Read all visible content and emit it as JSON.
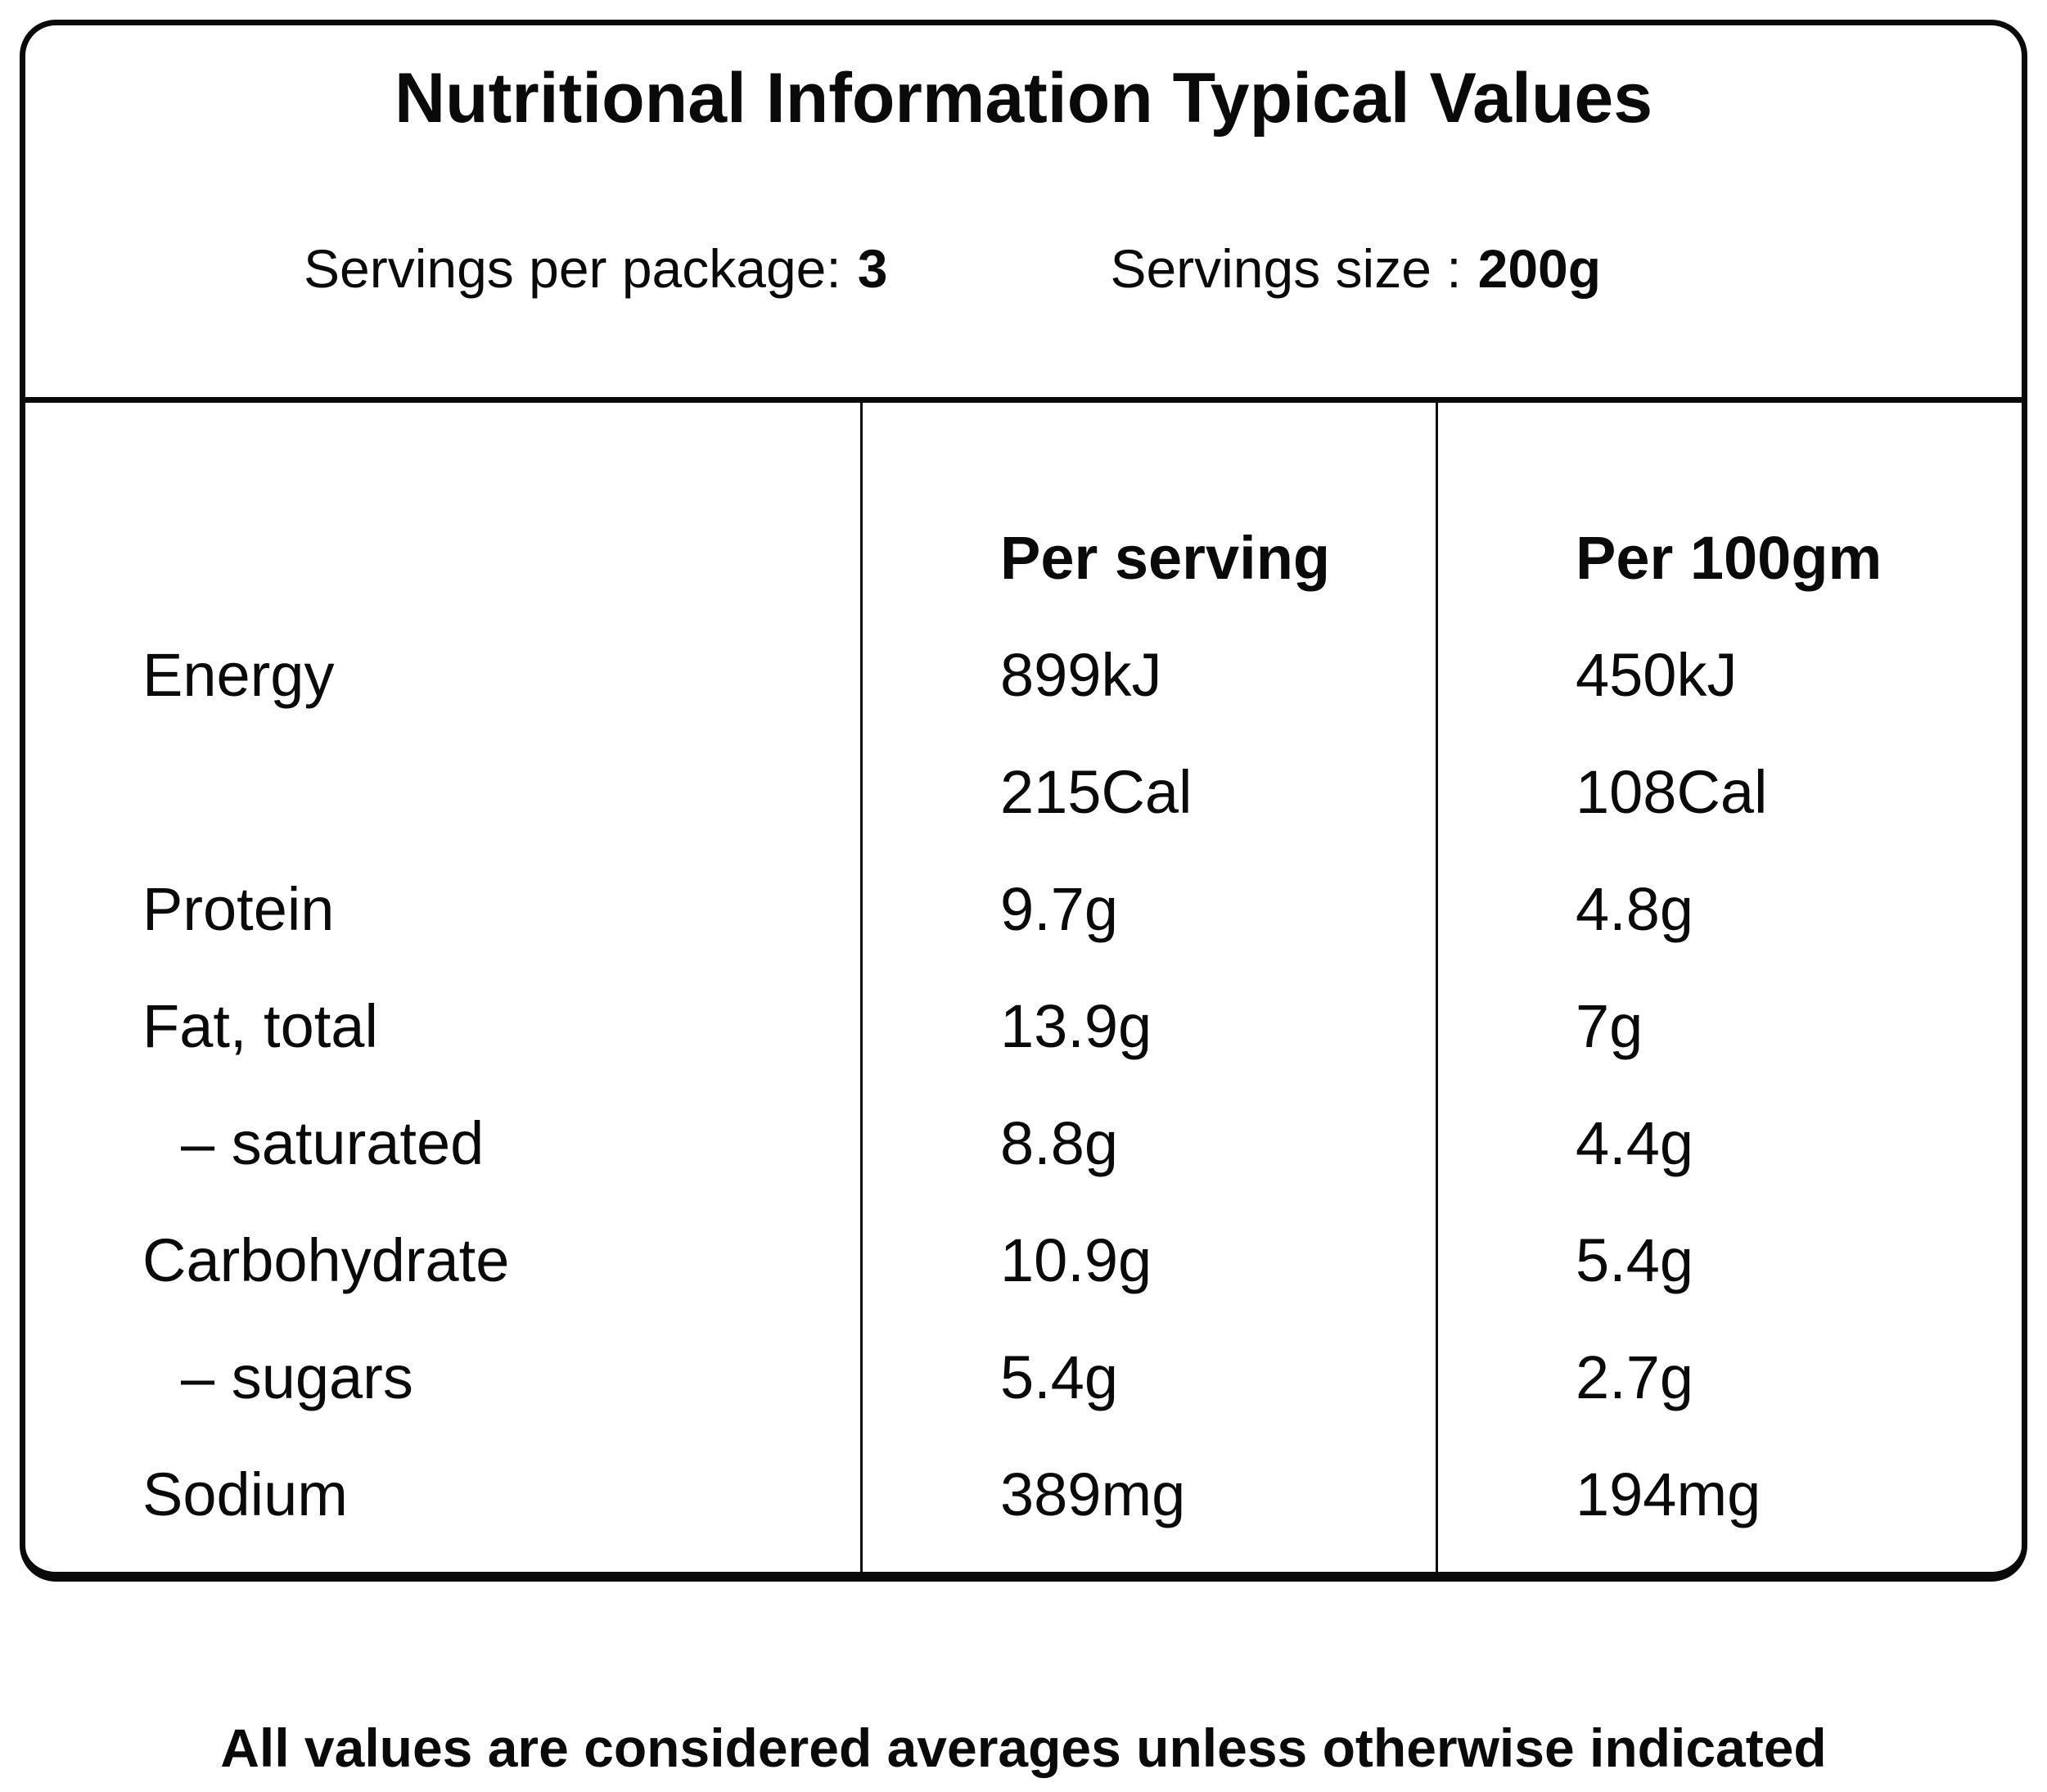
{
  "card": {
    "title": "Nutritional Information Typical Values",
    "servings": {
      "per_package_label": "Servings per package:",
      "per_package_value": "3",
      "size_label": "Servings size :",
      "size_value": "200g"
    }
  },
  "table": {
    "columns": {
      "per_serving": "Per serving",
      "per_100g": "Per 100gm"
    },
    "rows": [
      {
        "label": "Energy",
        "per_serving": "899kJ",
        "per_100g": "450kJ"
      },
      {
        "label": "",
        "per_serving": "215Cal",
        "per_100g": "108Cal"
      },
      {
        "label": "Protein",
        "per_serving": "9.7g",
        "per_100g": "4.8g"
      },
      {
        "label": "Fat, total",
        "per_serving": "13.9g",
        "per_100g": "7g"
      },
      {
        "label": "– saturated",
        "per_serving": "8.8g",
        "per_100g": "4.4g"
      },
      {
        "label": "Carbohydrate",
        "per_serving": "10.9g",
        "per_100g": "5.4g"
      },
      {
        "label": "– sugars",
        "per_serving": "5.4g",
        "per_100g": "2.7g"
      },
      {
        "label": "Sodium",
        "per_serving": "389mg",
        "per_100g": "194mg"
      }
    ]
  },
  "footer": {
    "note": "All values are considered averages unless otherwise indicated"
  }
}
